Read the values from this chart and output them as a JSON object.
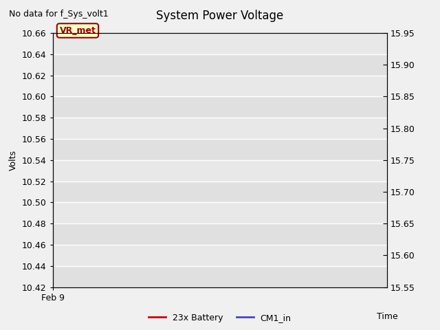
{
  "title": "System Power Voltage",
  "no_data_text": "No data for f_Sys_volt1",
  "ylabel_left": "Volts",
  "xlabel": "Time",
  "x_tick_label": "Feb 9",
  "ylim_left": [
    10.42,
    10.66
  ],
  "ylim_right": [
    15.55,
    15.95
  ],
  "yticks_left": [
    10.42,
    10.44,
    10.46,
    10.48,
    10.5,
    10.52,
    10.54,
    10.56,
    10.58,
    10.6,
    10.62,
    10.64,
    10.66
  ],
  "yticks_right": [
    15.55,
    15.6,
    15.65,
    15.7,
    15.75,
    15.8,
    15.85,
    15.9,
    15.95
  ],
  "annotation_text": "VR_met",
  "bg_color": "#f0f0f0",
  "plot_bg_color": "#e8e8e8",
  "legend_items": [
    {
      "label": "23x Battery",
      "color": "#cc0000",
      "linestyle": "-"
    },
    {
      "label": "CM1_in",
      "color": "#4444cc",
      "linestyle": "-"
    }
  ],
  "grid_color": "#ffffff",
  "title_fontsize": 12,
  "axis_fontsize": 9,
  "tick_fontsize": 9,
  "annotation_bbox_facecolor": "#ffffcc",
  "annotation_bbox_edgecolor": "#990000",
  "annotation_text_color": "#990000"
}
